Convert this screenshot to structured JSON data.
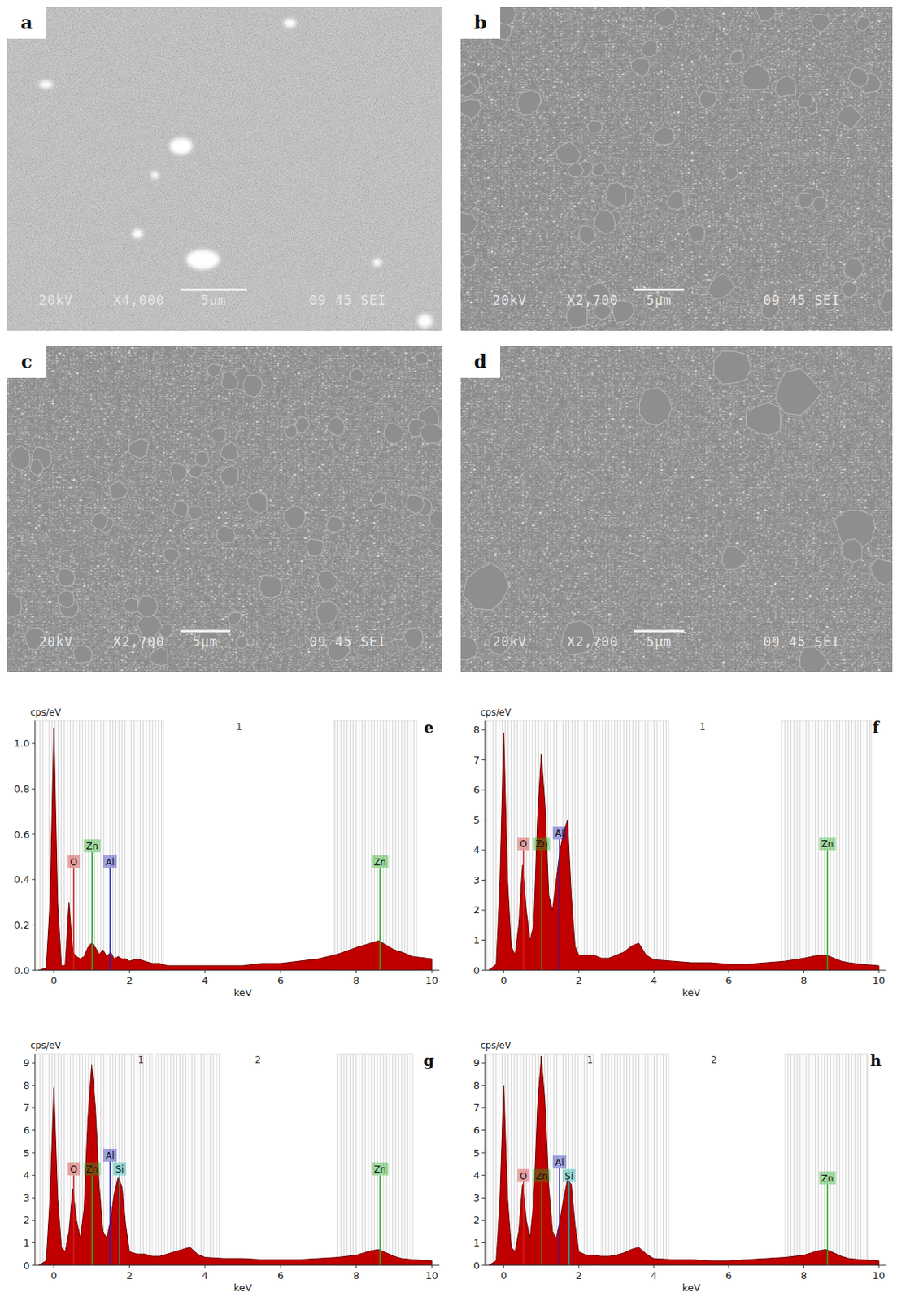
{
  "images": [
    {
      "label": "a",
      "voltage": "20kV",
      "magnification": "X4,000",
      "scale": "5μm",
      "info": "09 45 SEI"
    },
    {
      "label": "b",
      "voltage": "20kV",
      "magnification": "X2,700",
      "scale": "5μm",
      "info": "09 45 SEI"
    },
    {
      "label": "c",
      "voltage": "20kV",
      "magnification": "X2,700",
      "scale": "5μm",
      "info": "09 45 SEI"
    },
    {
      "label": "d",
      "voltage": "20kV",
      "magnification": "X2,700",
      "scale": "5μm",
      "info": "09 45 SEI"
    }
  ],
  "chart_data": [
    {
      "type": "area",
      "label": "e",
      "y_label": "cps/eV",
      "x_label": "keV",
      "color": "#c00000",
      "x": [
        -0.4,
        -0.2,
        -0.1,
        0,
        0.1,
        0.2,
        0.3,
        0.4,
        0.5,
        0.6,
        0.7,
        0.8,
        0.9,
        1.0,
        1.1,
        1.2,
        1.3,
        1.4,
        1.5,
        1.6,
        1.7,
        1.8,
        1.9,
        2.0,
        2.2,
        2.4,
        2.6,
        2.8,
        3.0,
        3.2,
        3.4,
        3.6,
        3.8,
        4.0,
        4.5,
        5.0,
        5.5,
        6.0,
        6.5,
        7.0,
        7.5,
        8.0,
        8.2,
        8.4,
        8.6,
        8.8,
        9.0,
        9.2,
        9.5,
        10.0
      ],
      "values": [
        0,
        0.01,
        0.3,
        1.07,
        0.3,
        0.02,
        0.02,
        0.3,
        0.08,
        0.06,
        0.05,
        0.06,
        0.1,
        0.12,
        0.1,
        0.07,
        0.09,
        0.06,
        0.08,
        0.05,
        0.06,
        0.05,
        0.05,
        0.04,
        0.05,
        0.04,
        0.03,
        0.03,
        0.02,
        0.02,
        0.02,
        0.02,
        0.02,
        0.02,
        0.02,
        0.02,
        0.03,
        0.03,
        0.04,
        0.05,
        0.07,
        0.1,
        0.11,
        0.12,
        0.13,
        0.11,
        0.09,
        0.08,
        0.06,
        0.05
      ],
      "xlim": [
        -0.5,
        10.2
      ],
      "xticks": [
        0,
        2,
        4,
        6,
        8,
        10
      ],
      "ylim": [
        0,
        1.1
      ],
      "yticks": [
        {
          "value": 0,
          "label": "0.0"
        },
        0.2,
        0.4,
        0.6,
        0.8,
        {
          "value": 1,
          "label": "1.0"
        }
      ],
      "markers": [
        {
          "label": "O",
          "energy": 0.525,
          "height": 0.45,
          "color": "#d02020"
        },
        {
          "label": "Zn",
          "energy": 1.012,
          "height": 0.52,
          "color": "#20b020"
        },
        {
          "label": "Al",
          "energy": 1.487,
          "height": 0.45,
          "color": "#2020c0"
        },
        {
          "label": "Zn",
          "energy": 8.63,
          "height": 0.45,
          "color": "#20b020"
        }
      ],
      "bands": [
        [
          -0.5,
          2.9
        ],
        [
          7.4,
          9.6
        ]
      ],
      "regions": [
        {
          "label": "1",
          "x": 4.9
        }
      ]
    },
    {
      "type": "area",
      "label": "f",
      "y_label": "cps/eV",
      "x_label": "keV",
      "color": "#c00000",
      "x": [
        -0.4,
        -0.2,
        -0.1,
        0,
        0.1,
        0.2,
        0.3,
        0.4,
        0.5,
        0.6,
        0.7,
        0.8,
        0.9,
        1.0,
        1.1,
        1.2,
        1.3,
        1.4,
        1.5,
        1.6,
        1.7,
        1.8,
        1.9,
        2.0,
        2.2,
        2.4,
        2.6,
        2.8,
        3.0,
        3.2,
        3.4,
        3.6,
        3.8,
        4.0,
        4.5,
        5.0,
        5.5,
        6.0,
        6.5,
        7.0,
        7.5,
        8.0,
        8.2,
        8.4,
        8.6,
        8.8,
        9.0,
        9.2,
        9.5,
        10.0
      ],
      "values": [
        0,
        0.2,
        3,
        7.9,
        3,
        0.8,
        0.5,
        1.5,
        3.5,
        2.0,
        1.0,
        1.5,
        5,
        7.2,
        5.5,
        2.5,
        2.0,
        3.0,
        4.0,
        4.6,
        5.0,
        2.5,
        0.8,
        0.5,
        0.5,
        0.5,
        0.4,
        0.4,
        0.5,
        0.6,
        0.8,
        0.9,
        0.5,
        0.35,
        0.3,
        0.25,
        0.25,
        0.2,
        0.2,
        0.25,
        0.3,
        0.4,
        0.45,
        0.5,
        0.5,
        0.4,
        0.3,
        0.25,
        0.2,
        0.15
      ],
      "xlim": [
        -0.5,
        10.2
      ],
      "xticks": [
        0,
        2,
        4,
        6,
        8,
        10
      ],
      "ylim": [
        0,
        8.3
      ],
      "yticks": [
        0,
        1,
        2,
        3,
        4,
        5,
        6,
        7,
        8
      ],
      "markers": [
        {
          "label": "O",
          "energy": 0.525,
          "height": 4.0,
          "color": "#d02020"
        },
        {
          "label": "Zn",
          "energy": 1.012,
          "height": 4.0,
          "color": "#20b020"
        },
        {
          "label": "Al",
          "energy": 1.487,
          "height": 4.35,
          "color": "#2020c0"
        },
        {
          "label": "Zn",
          "energy": 8.63,
          "height": 4.0,
          "color": "#20b020"
        }
      ],
      "bands": [
        [
          -0.5,
          4.4
        ],
        [
          7.4,
          9.8
        ]
      ],
      "regions": [
        {
          "label": "1",
          "x": 5.3
        }
      ]
    },
    {
      "type": "area",
      "label": "g",
      "y_label": "cps/eV",
      "x_label": "keV",
      "color": "#c00000",
      "x": [
        -0.4,
        -0.2,
        -0.1,
        0,
        0.1,
        0.2,
        0.3,
        0.4,
        0.5,
        0.6,
        0.7,
        0.8,
        0.9,
        1.0,
        1.1,
        1.2,
        1.3,
        1.4,
        1.5,
        1.6,
        1.7,
        1.8,
        1.9,
        2.0,
        2.2,
        2.4,
        2.6,
        2.8,
        3.0,
        3.2,
        3.4,
        3.6,
        3.8,
        4.0,
        4.5,
        5.0,
        5.5,
        6.0,
        6.5,
        7.0,
        7.5,
        8.0,
        8.2,
        8.4,
        8.6,
        8.8,
        9.0,
        9.2,
        9.5,
        10.0
      ],
      "values": [
        0,
        0.2,
        3,
        7.9,
        3,
        0.8,
        0.6,
        1.5,
        3.4,
        2.0,
        1.2,
        2.5,
        6.5,
        8.9,
        7,
        3.5,
        1.5,
        1.2,
        2.0,
        3.2,
        3.9,
        3.5,
        1.8,
        0.6,
        0.5,
        0.5,
        0.4,
        0.4,
        0.5,
        0.6,
        0.7,
        0.8,
        0.5,
        0.35,
        0.3,
        0.3,
        0.25,
        0.25,
        0.25,
        0.3,
        0.35,
        0.45,
        0.55,
        0.65,
        0.7,
        0.55,
        0.4,
        0.3,
        0.25,
        0.2
      ],
      "xlim": [
        -0.5,
        10.2
      ],
      "xticks": [
        0,
        2,
        4,
        6,
        8,
        10
      ],
      "ylim": [
        0,
        9.4
      ],
      "yticks": [
        0,
        1,
        2,
        3,
        4,
        5,
        6,
        7,
        8,
        9
      ],
      "markers": [
        {
          "label": "O",
          "energy": 0.525,
          "height": 4.0,
          "color": "#d02020"
        },
        {
          "label": "Zn",
          "energy": 1.012,
          "height": 4.0,
          "color": "#20b020"
        },
        {
          "label": "Al",
          "energy": 1.487,
          "height": 4.6,
          "color": "#2020c0"
        },
        {
          "label": "Si",
          "energy": 1.74,
          "height": 4.0,
          "color": "#10b0b0"
        },
        {
          "label": "Zn",
          "energy": 8.63,
          "height": 4.0,
          "color": "#20b020"
        }
      ],
      "bands": [
        [
          -0.5,
          2.6
        ],
        [
          2.7,
          4.4
        ],
        [
          7.5,
          9.5
        ]
      ],
      "regions": [
        {
          "label": "1",
          "x": 2.3
        },
        {
          "label": "2",
          "x": 5.4
        }
      ]
    },
    {
      "type": "area",
      "label": "h",
      "y_label": "cps/eV",
      "x_label": "keV",
      "color": "#c00000",
      "x": [
        -0.4,
        -0.2,
        -0.1,
        0,
        0.1,
        0.2,
        0.3,
        0.4,
        0.5,
        0.6,
        0.7,
        0.8,
        0.9,
        1.0,
        1.1,
        1.2,
        1.3,
        1.4,
        1.5,
        1.6,
        1.7,
        1.8,
        1.9,
        2.0,
        2.2,
        2.4,
        2.6,
        2.8,
        3.0,
        3.2,
        3.4,
        3.6,
        3.8,
        4.0,
        4.5,
        5.0,
        5.5,
        6.0,
        6.5,
        7.0,
        7.5,
        8.0,
        8.2,
        8.4,
        8.6,
        8.8,
        9.0,
        9.2,
        9.5,
        10.0
      ],
      "values": [
        0,
        0.2,
        3,
        8.0,
        3,
        0.8,
        0.6,
        1.5,
        3.6,
        2.0,
        1.2,
        2.8,
        7,
        9.3,
        7.2,
        3.5,
        1.5,
        1.2,
        2.0,
        3.0,
        3.8,
        3.6,
        1.8,
        0.6,
        0.45,
        0.45,
        0.4,
        0.4,
        0.45,
        0.55,
        0.7,
        0.8,
        0.5,
        0.3,
        0.25,
        0.25,
        0.2,
        0.2,
        0.25,
        0.3,
        0.35,
        0.45,
        0.55,
        0.65,
        0.7,
        0.55,
        0.4,
        0.3,
        0.25,
        0.2
      ],
      "xlim": [
        -0.5,
        10.2
      ],
      "xticks": [
        0,
        2,
        4,
        6,
        8,
        10
      ],
      "ylim": [
        0,
        9.4
      ],
      "yticks": [
        0,
        1,
        2,
        3,
        4,
        5,
        6,
        7,
        8,
        9
      ],
      "markers": [
        {
          "label": "O",
          "energy": 0.525,
          "height": 3.7,
          "color": "#d02020"
        },
        {
          "label": "Zn",
          "energy": 1.012,
          "height": 3.7,
          "color": "#20b020"
        },
        {
          "label": "Al",
          "energy": 1.487,
          "height": 4.3,
          "color": "#2020c0"
        },
        {
          "label": "Si",
          "energy": 1.74,
          "height": 3.7,
          "color": "#10b0b0"
        },
        {
          "label": "Zn",
          "energy": 8.63,
          "height": 3.6,
          "color": "#20b020"
        }
      ],
      "bands": [
        [
          -0.5,
          2.4
        ],
        [
          2.6,
          4.4
        ],
        [
          7.5,
          9.7
        ]
      ],
      "regions": [
        {
          "label": "1",
          "x": 2.3
        },
        {
          "label": "2",
          "x": 5.6
        }
      ]
    }
  ]
}
